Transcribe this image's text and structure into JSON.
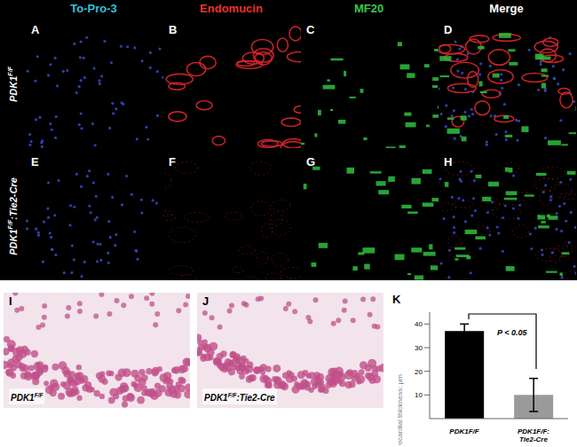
{
  "figure": {
    "column_headers": [
      {
        "text": "To-Pro-3",
        "color": "#2fc4d8"
      },
      {
        "text": "Endomucin",
        "color": "#e8332b"
      },
      {
        "text": "MF20",
        "color": "#38c84a"
      },
      {
        "text": "Merge",
        "color": "#ffffff"
      }
    ],
    "row_labels": [
      {
        "base": "PDK1",
        "sup": "F/F",
        "suffix": ""
      },
      {
        "base": "PDK1",
        "sup": "F/F",
        "suffix": ":Tie2-Cre"
      }
    ],
    "panel_letters": [
      [
        "A",
        "B",
        "C",
        "D"
      ],
      [
        "E",
        "F",
        "G",
        "H"
      ]
    ],
    "histology": [
      {
        "letter": "I",
        "label": {
          "base": "PDK1",
          "sup": "F/F",
          "suffix": ""
        }
      },
      {
        "letter": "J",
        "label": {
          "base": "PDK1",
          "sup": "F/F",
          "suffix": ":Tie2-Cre"
        }
      }
    ],
    "chart_letter": "K"
  },
  "chart_data": {
    "type": "bar",
    "categories": [
      "PDK1F/F",
      "PDK1F/F:Tie2-Cre"
    ],
    "values": [
      37,
      10
    ],
    "errors": [
      3,
      7
    ],
    "colors": [
      "#000000",
      "#9a9a9a"
    ],
    "ylabel": "Myocardial thickness: μm",
    "ylim": [
      0,
      45
    ],
    "yticks": [
      10,
      20,
      30,
      40
    ],
    "annotations": [
      {
        "text": "P < 0.05"
      }
    ]
  }
}
